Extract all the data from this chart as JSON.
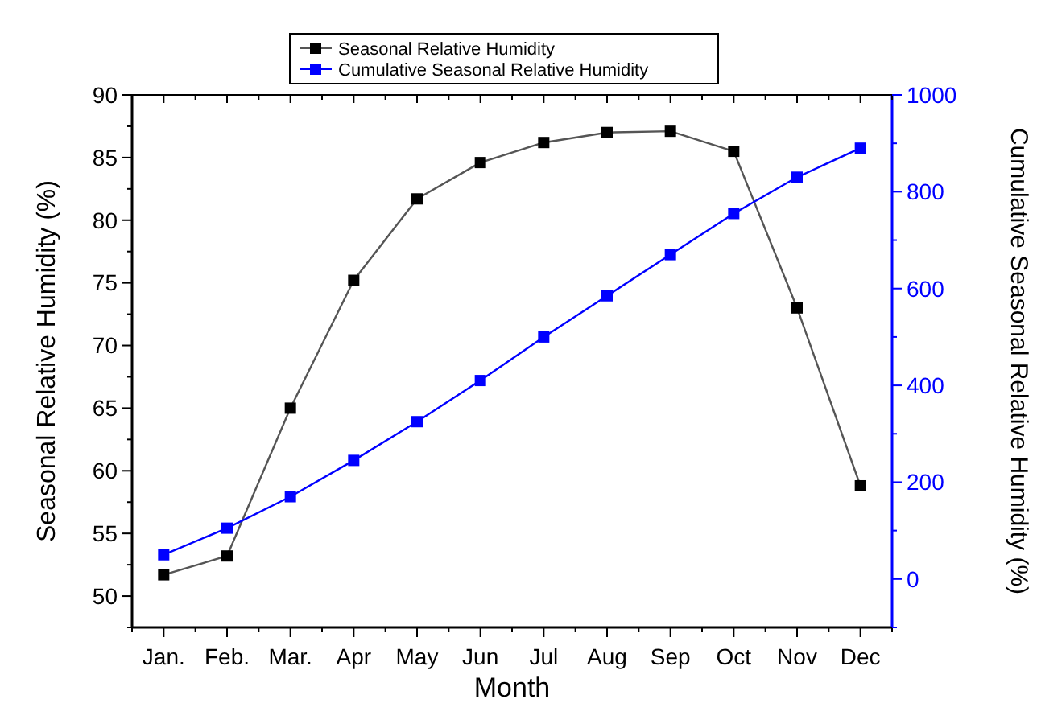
{
  "chart_data": {
    "type": "line",
    "xlabel": "Month",
    "ylabel": "Seasonal Relative Humidity (%)",
    "y2label": "Cumulative Seasonal Relative Humidity (%)",
    "categories": [
      "Jan.",
      "Feb.",
      "Mar.",
      "Apr",
      "May",
      "Jun",
      "Jul",
      "Aug",
      "Sep",
      "Oct",
      "Nov",
      "Dec"
    ],
    "series": [
      {
        "name": "Seasonal Relative Humidity",
        "color": "#000000",
        "values": [
          51.7,
          53.2,
          65,
          75.2,
          81.7,
          84.6,
          86.2,
          87,
          87.1,
          85.5,
          73,
          58.8
        ]
      },
      {
        "name": "Cumulative Seasonal Relative Humidity",
        "color": "#0000ff",
        "axis": "y2",
        "values": [
          50,
          105,
          170,
          245,
          325,
          410,
          500,
          585,
          670,
          755,
          830,
          890
        ]
      }
    ],
    "ylim": [
      47.5,
      90
    ],
    "yticks": [
      50,
      55,
      60,
      65,
      70,
      75,
      80,
      85,
      90
    ],
    "y2lim": [
      -100,
      1000
    ],
    "y2ticks": [
      0,
      200,
      400,
      600,
      800,
      1000
    ],
    "marker": "square",
    "legend": "top",
    "grid": false
  }
}
